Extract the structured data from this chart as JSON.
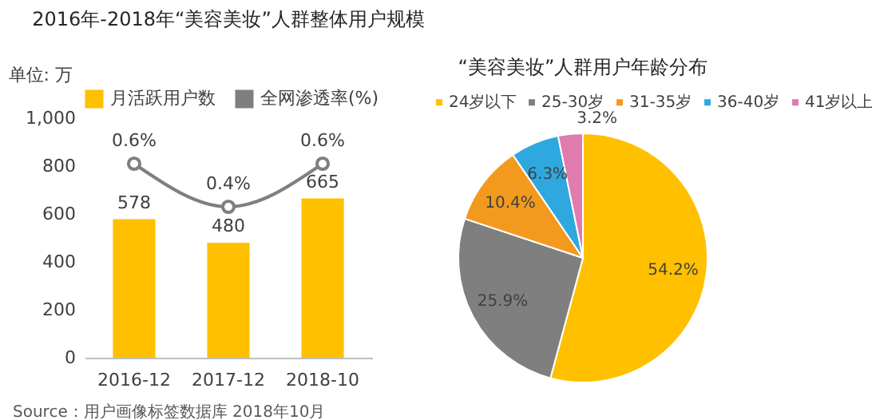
{
  "chart_data": [
    {
      "type": "bar",
      "title": "2016年-2018年“美容美妆”人群整体用户规模",
      "ylabel": "单位: 万",
      "categories": [
        "2016-12",
        "2017-12",
        "2018-10"
      ],
      "series": [
        {
          "name": "月活跃用户数",
          "color": "#ffc000",
          "values": [
            578,
            480,
            665
          ],
          "value_labels": [
            "578",
            "480",
            "665"
          ]
        },
        {
          "name": "全网渗透率(%)",
          "type": "line",
          "axis": "y2",
          "color": "#7f7f7f",
          "marker": "circle",
          "values": [
            0.6,
            0.4,
            0.6
          ],
          "value_labels": [
            "0.6%",
            "0.4%",
            "0.6%"
          ]
        }
      ],
      "ylim": [
        0,
        1000
      ],
      "yticks": [
        0,
        200,
        400,
        600,
        800,
        {
          "value": 1000,
          "label": "1,000"
        }
      ],
      "grid": false,
      "legend": "top",
      "annotations": [
        "Source：用户画像标签数据库 2018年10月"
      ]
    },
    {
      "type": "pie",
      "title": "“美容美妆”人群用户年龄分布",
      "categories": [
        "24岁以下",
        "25-30岁",
        "31-35岁",
        "36-40岁",
        "41岁以上"
      ],
      "values": [
        54.2,
        25.9,
        10.4,
        6.3,
        3.2
      ],
      "colors": [
        "#ffc000",
        "#7f7f7f",
        "#f39a1e",
        "#2fa8df",
        "#e07bb0"
      ],
      "value_labels": [
        "54.2%",
        "25.9%",
        "10.4%",
        "6.3%",
        "3.2%"
      ],
      "legend": "top"
    }
  ]
}
